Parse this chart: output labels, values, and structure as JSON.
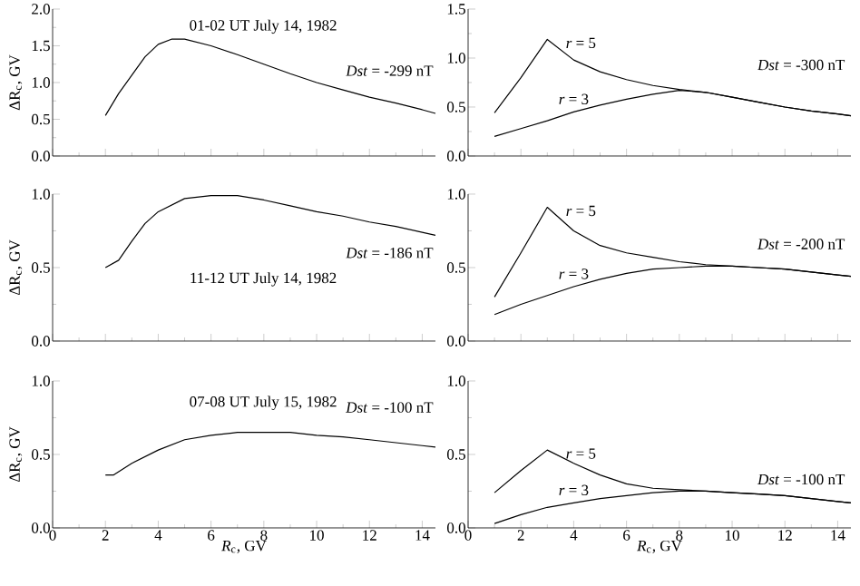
{
  "chart_data": [
    {
      "type": "line",
      "title": "01-02 UT July 14, 1982",
      "annotations": [
        "*Dst* = -299 nT"
      ],
      "ylabel": "ΔR$_{c}$, GV",
      "tick_labels": "y",
      "color": "#000000",
      "x": [
        2,
        2.5,
        3,
        3.5,
        4,
        4.5,
        5,
        6,
        7,
        8,
        9,
        10,
        11,
        12,
        13,
        14,
        14.5
      ],
      "values": [
        0.55,
        0.85,
        1.1,
        1.35,
        1.52,
        1.59,
        1.59,
        1.5,
        1.38,
        1.25,
        1.12,
        1.0,
        0.9,
        0.8,
        0.72,
        0.63,
        0.58
      ],
      "xlim": [
        0,
        14.5
      ],
      "xticks": [
        0,
        2,
        4,
        6,
        8,
        10,
        12,
        14
      ],
      "ylim": [
        0,
        2
      ],
      "yticks": [
        {
          "value": 0,
          "label": "0.0"
        },
        {
          "value": 0.5,
          "label": "0.5"
        },
        {
          "value": 1,
          "label": "1.0"
        },
        {
          "value": 1.5,
          "label": "1.5"
        },
        {
          "value": 2,
          "label": "2.0"
        }
      ]
    },
    {
      "type": "line",
      "annotations": [
        "*Dst* = -300 nT"
      ],
      "tick_labels": "y",
      "x": [
        1,
        2,
        3,
        4,
        5,
        6,
        7,
        8,
        9,
        10,
        11,
        12,
        13,
        14,
        14.5
      ],
      "series": [
        {
          "name": "*r* = 5",
          "color": "#000000",
          "values": [
            0.44,
            0.8,
            1.19,
            0.98,
            0.86,
            0.78,
            0.72,
            0.68,
            0.65,
            0.6,
            0.55,
            0.5,
            0.46,
            0.43,
            0.41
          ]
        },
        {
          "name": "*r* = 3",
          "color": "#000000",
          "values": [
            0.2,
            0.28,
            0.36,
            0.45,
            0.52,
            0.58,
            0.63,
            0.67,
            0.65,
            0.6,
            0.55,
            0.5,
            0.46,
            0.43,
            0.41
          ]
        }
      ],
      "xlim": [
        0,
        14.5
      ],
      "xticks": [
        0,
        2,
        4,
        6,
        8,
        10,
        12,
        14
      ],
      "ylim": [
        0,
        1.5
      ],
      "yticks": [
        {
          "value": 0,
          "label": "0.0"
        },
        {
          "value": 0.5,
          "label": "0.5"
        },
        {
          "value": 1,
          "label": "1.0"
        },
        {
          "value": 1.5,
          "label": "1.5"
        }
      ]
    },
    {
      "type": "line",
      "title": "11-12 UT July 14, 1982",
      "annotations": [
        "*Dst* = -186 nT"
      ],
      "ylabel": "ΔR$_{c}$, GV",
      "tick_labels": "y",
      "color": "#000000",
      "x": [
        2,
        2.5,
        3,
        3.5,
        4,
        5,
        6,
        7,
        8,
        9,
        10,
        11,
        12,
        13,
        14,
        14.5
      ],
      "values": [
        0.5,
        0.55,
        0.68,
        0.8,
        0.88,
        0.97,
        0.99,
        0.99,
        0.96,
        0.92,
        0.88,
        0.85,
        0.81,
        0.78,
        0.74,
        0.72
      ],
      "xlim": [
        0,
        14.5
      ],
      "xticks": [
        0,
        2,
        4,
        6,
        8,
        10,
        12,
        14
      ],
      "ylim": [
        0,
        1
      ],
      "yticks": [
        {
          "value": 0,
          "label": "0.0"
        },
        {
          "value": 0.5,
          "label": "0.5"
        },
        {
          "value": 1,
          "label": "1.0"
        }
      ]
    },
    {
      "type": "line",
      "annotations": [
        "*Dst* = -200 nT"
      ],
      "tick_labels": "y",
      "x": [
        1,
        2,
        3,
        4,
        5,
        6,
        7,
        8,
        9,
        10,
        11,
        12,
        13,
        14,
        14.5
      ],
      "series": [
        {
          "name": "*r* = 5",
          "color": "#000000",
          "values": [
            0.3,
            0.6,
            0.91,
            0.75,
            0.65,
            0.6,
            0.57,
            0.54,
            0.52,
            0.51,
            0.5,
            0.49,
            0.47,
            0.45,
            0.44
          ]
        },
        {
          "name": "*r* = 3",
          "color": "#000000",
          "values": [
            0.18,
            0.25,
            0.31,
            0.37,
            0.42,
            0.46,
            0.49,
            0.5,
            0.51,
            0.51,
            0.5,
            0.49,
            0.47,
            0.45,
            0.44
          ]
        }
      ],
      "xlim": [
        0,
        14.5
      ],
      "xticks": [
        0,
        2,
        4,
        6,
        8,
        10,
        12,
        14
      ],
      "ylim": [
        0,
        1
      ],
      "yticks": [
        {
          "value": 0,
          "label": "0.0"
        },
        {
          "value": 0.5,
          "label": "0.5"
        },
        {
          "value": 1,
          "label": "1.0"
        }
      ]
    },
    {
      "type": "line",
      "title": "07-08 UT July 15, 1982",
      "annotations": [
        "*Dst* = -100 nT"
      ],
      "ylabel": "ΔR$_{c}$, GV",
      "xlabel": "*R*$_{c}$, GV",
      "color": "#000000",
      "x": [
        2,
        2.3,
        3,
        4,
        5,
        6,
        7,
        8,
        9,
        10,
        11,
        12,
        13,
        14,
        14.5
      ],
      "values": [
        0.36,
        0.36,
        0.44,
        0.53,
        0.6,
        0.63,
        0.65,
        0.65,
        0.65,
        0.63,
        0.62,
        0.6,
        0.58,
        0.56,
        0.55
      ],
      "xlim": [
        0,
        14.5
      ],
      "xticks": [
        0,
        2,
        4,
        6,
        8,
        10,
        12,
        14
      ],
      "ylim": [
        0,
        1
      ],
      "yticks": [
        {
          "value": 0,
          "label": "0.0"
        },
        {
          "value": 0.5,
          "label": "0.5"
        },
        {
          "value": 1,
          "label": "1.0"
        }
      ]
    },
    {
      "type": "line",
      "annotations": [
        "*Dst* = -100 nT"
      ],
      "xlabel": "*R*$_{c}$, GV",
      "x": [
        1,
        2,
        3,
        4,
        5,
        6,
        7,
        8,
        9,
        10,
        11,
        12,
        13,
        14,
        14.5
      ],
      "series": [
        {
          "name": "*r* = 5",
          "color": "#000000",
          "values": [
            0.24,
            0.39,
            0.53,
            0.44,
            0.36,
            0.3,
            0.27,
            0.26,
            0.25,
            0.24,
            0.23,
            0.22,
            0.2,
            0.18,
            0.17
          ]
        },
        {
          "name": "*r* = 3",
          "color": "#000000",
          "values": [
            0.03,
            0.09,
            0.14,
            0.17,
            0.2,
            0.22,
            0.24,
            0.25,
            0.25,
            0.24,
            0.23,
            0.22,
            0.2,
            0.18,
            0.17
          ]
        }
      ],
      "xlim": [
        0,
        14.5
      ],
      "xticks": [
        0,
        2,
        4,
        6,
        8,
        10,
        12,
        14
      ],
      "ylim": [
        0,
        1
      ],
      "yticks": [
        {
          "value": 0,
          "label": "0.0"
        },
        {
          "value": 0.5,
          "label": "0.5"
        },
        {
          "value": 1,
          "label": "1.0"
        }
      ]
    }
  ]
}
